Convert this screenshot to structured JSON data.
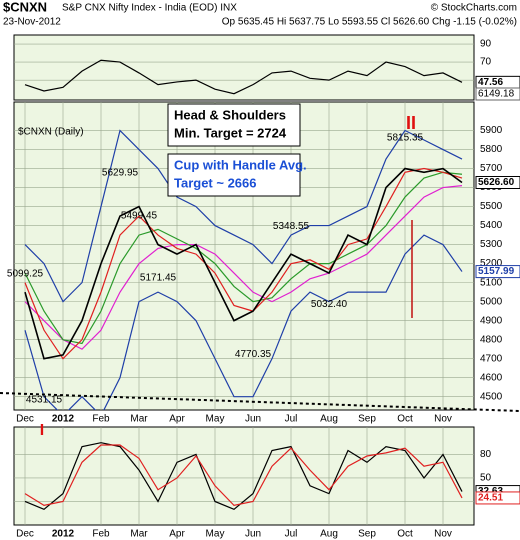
{
  "header": {
    "symbol": "$CNXN",
    "name": "S&P CNX Nifty Index - India (EOD) INX",
    "credit": "© StockCharts.com",
    "date": "23-Nov-2012",
    "quote": "Op 5635.45 Hi 5637.75 Lo 5593.55 Cl 5626.60 Chg -1.15 (-0.02%)"
  },
  "chart_data": [
    {
      "type": "line",
      "ylim": [
        28,
        100
      ],
      "yticks": [
        90,
        70,
        50
      ],
      "extra_labels": [
        "6149.18"
      ],
      "series": [
        {
          "name": "RSI",
          "color": "#000000",
          "values": [
            45,
            38,
            42,
            60,
            72,
            70,
            58,
            45,
            48,
            50,
            40,
            35,
            45,
            58,
            60,
            52,
            50,
            60,
            55,
            70,
            65,
            55,
            58,
            47.56
          ],
          "value_labels": [
            null,
            null,
            null,
            null,
            null,
            null,
            null,
            null,
            null,
            null,
            null,
            null,
            null,
            null,
            null,
            null,
            null,
            null,
            null,
            null,
            null,
            null,
            null,
            "47.56"
          ]
        }
      ]
    },
    {
      "type": "line",
      "title": "$CNXN (Daily)",
      "ylim": [
        4430,
        6050
      ],
      "yticks": [
        4500,
        4600,
        4700,
        4800,
        4900,
        5000,
        5100,
        5200,
        5300,
        5400,
        5500,
        5600,
        5700,
        5800,
        5900
      ],
      "categories": [
        "Dec",
        null,
        "2012",
        null,
        "Feb",
        null,
        "Mar",
        null,
        "Apr",
        null,
        "May",
        null,
        "Jun",
        null,
        "Jul",
        null,
        "Aug",
        null,
        "Sep",
        null,
        "Oct",
        null,
        "Nov",
        null
      ],
      "series": [
        {
          "name": "Upper BB",
          "color": "#1f3fa8",
          "values": [
            5300,
            5200,
            5000,
            5100,
            5500,
            5900,
            5800,
            5700,
            5550,
            5500,
            5400,
            5350,
            5300,
            5200,
            5350,
            5400,
            5400,
            5450,
            5500,
            5750,
            5900,
            5850,
            5800,
            5750
          ]
        },
        {
          "name": "Lower BB",
          "color": "#1f3fa8",
          "values": [
            4850,
            4500,
            4400,
            4500,
            4400,
            4600,
            5000,
            5050,
            5000,
            4900,
            4700,
            4500,
            4500,
            4700,
            4950,
            5050,
            5000,
            5050,
            5050,
            5050,
            5250,
            5350,
            5300,
            5157.99
          ],
          "value_labels": [
            null,
            null,
            null,
            null,
            null,
            null,
            null,
            null,
            null,
            null,
            null,
            null,
            null,
            null,
            null,
            null,
            null,
            null,
            null,
            null,
            null,
            null,
            null,
            "5157.99"
          ]
        },
        {
          "name": "Long MA",
          "color": "#e020d0",
          "values": [
            5000,
            4900,
            4800,
            4750,
            4850,
            5050,
            5200,
            5280,
            5300,
            5300,
            5250,
            5150,
            5050,
            5000,
            5050,
            5120,
            5150,
            5200,
            5250,
            5350,
            5450,
            5550,
            5600,
            5610
          ]
        },
        {
          "name": "Mid MA",
          "color": "#2a9a2a",
          "values": [
            5150,
            4950,
            4800,
            4780,
            4950,
            5200,
            5350,
            5380,
            5330,
            5280,
            5200,
            5080,
            5000,
            5020,
            5120,
            5200,
            5200,
            5250,
            5300,
            5400,
            5550,
            5650,
            5680,
            5670
          ]
        },
        {
          "name": "Short MA",
          "color": "#e02020",
          "values": [
            5100,
            4850,
            4700,
            4800,
            5050,
            5350,
            5450,
            5350,
            5280,
            5250,
            5150,
            4980,
            4950,
            5050,
            5200,
            5220,
            5170,
            5300,
            5330,
            5500,
            5680,
            5700,
            5680,
            5650
          ]
        },
        {
          "name": "Close",
          "color": "#000000",
          "values": [
            5050,
            4700,
            4720,
            4900,
            5200,
            5450,
            5500,
            5300,
            5250,
            5300,
            5100,
            4900,
            4950,
            5100,
            5250,
            5200,
            5150,
            5350,
            5300,
            5600,
            5700,
            5680,
            5700,
            5626.6
          ],
          "value_labels": [
            null,
            null,
            null,
            null,
            null,
            null,
            null,
            null,
            null,
            null,
            null,
            null,
            null,
            null,
            null,
            null,
            null,
            null,
            null,
            null,
            null,
            null,
            null,
            "5626.60"
          ]
        }
      ],
      "annotations": [
        {
          "label": "5099.25",
          "value": 5099.25,
          "index": 0
        },
        {
          "label": "4531.15",
          "value": 4531.15,
          "index": 1
        },
        {
          "label": "5629.95",
          "value": 5629.95,
          "index": 5
        },
        {
          "label": "5499.45",
          "value": 5499.45,
          "index": 6
        },
        {
          "label": "5171.45",
          "value": 5171.45,
          "index": 7
        },
        {
          "label": "4770.35",
          "value": 4770.35,
          "index": 12
        },
        {
          "label": "5348.55",
          "value": 5348.55,
          "index": 14
        },
        {
          "label": "5032.40",
          "value": 5032.4,
          "index": 16
        },
        {
          "label": "5815.35",
          "value": 5815.35,
          "index": 20
        }
      ],
      "boxes": [
        {
          "lines": [
            "Head & Shoulders",
            "Min. Target = 2724"
          ],
          "color": "#000000"
        },
        {
          "lines": [
            "Cup with Handle Avg.",
            "Target ~ 2666"
          ],
          "color": "#1a4fd6"
        }
      ]
    },
    {
      "type": "line",
      "ylim": [
        -10,
        115
      ],
      "yticks": [
        80,
        50,
        20
      ],
      "categories": [
        "Dec",
        null,
        "2012",
        null,
        "Feb",
        null,
        "Mar",
        null,
        "Apr",
        null,
        "May",
        null,
        "Jun",
        null,
        "Jul",
        null,
        "Aug",
        null,
        "Sep",
        null,
        "Oct",
        null,
        "Nov",
        null
      ],
      "series": [
        {
          "name": "%K",
          "color": "#000000",
          "values": [
            20,
            10,
            30,
            90,
            95,
            90,
            60,
            20,
            70,
            80,
            20,
            10,
            30,
            85,
            90,
            40,
            30,
            85,
            70,
            90,
            85,
            50,
            80,
            32.63
          ],
          "value_labels": [
            null,
            null,
            null,
            null,
            null,
            null,
            null,
            null,
            null,
            null,
            null,
            null,
            null,
            null,
            null,
            null,
            null,
            null,
            null,
            null,
            null,
            null,
            null,
            "32.63"
          ]
        },
        {
          "name": "%D",
          "color": "#e02020",
          "values": [
            30,
            15,
            20,
            70,
            92,
            92,
            75,
            35,
            50,
            78,
            40,
            15,
            20,
            65,
            88,
            60,
            35,
            65,
            78,
            82,
            88,
            65,
            70,
            24.51
          ],
          "value_labels": [
            null,
            null,
            null,
            null,
            null,
            null,
            null,
            null,
            null,
            null,
            null,
            null,
            null,
            null,
            null,
            null,
            null,
            null,
            null,
            null,
            null,
            null,
            null,
            "24.51"
          ]
        }
      ]
    }
  ]
}
